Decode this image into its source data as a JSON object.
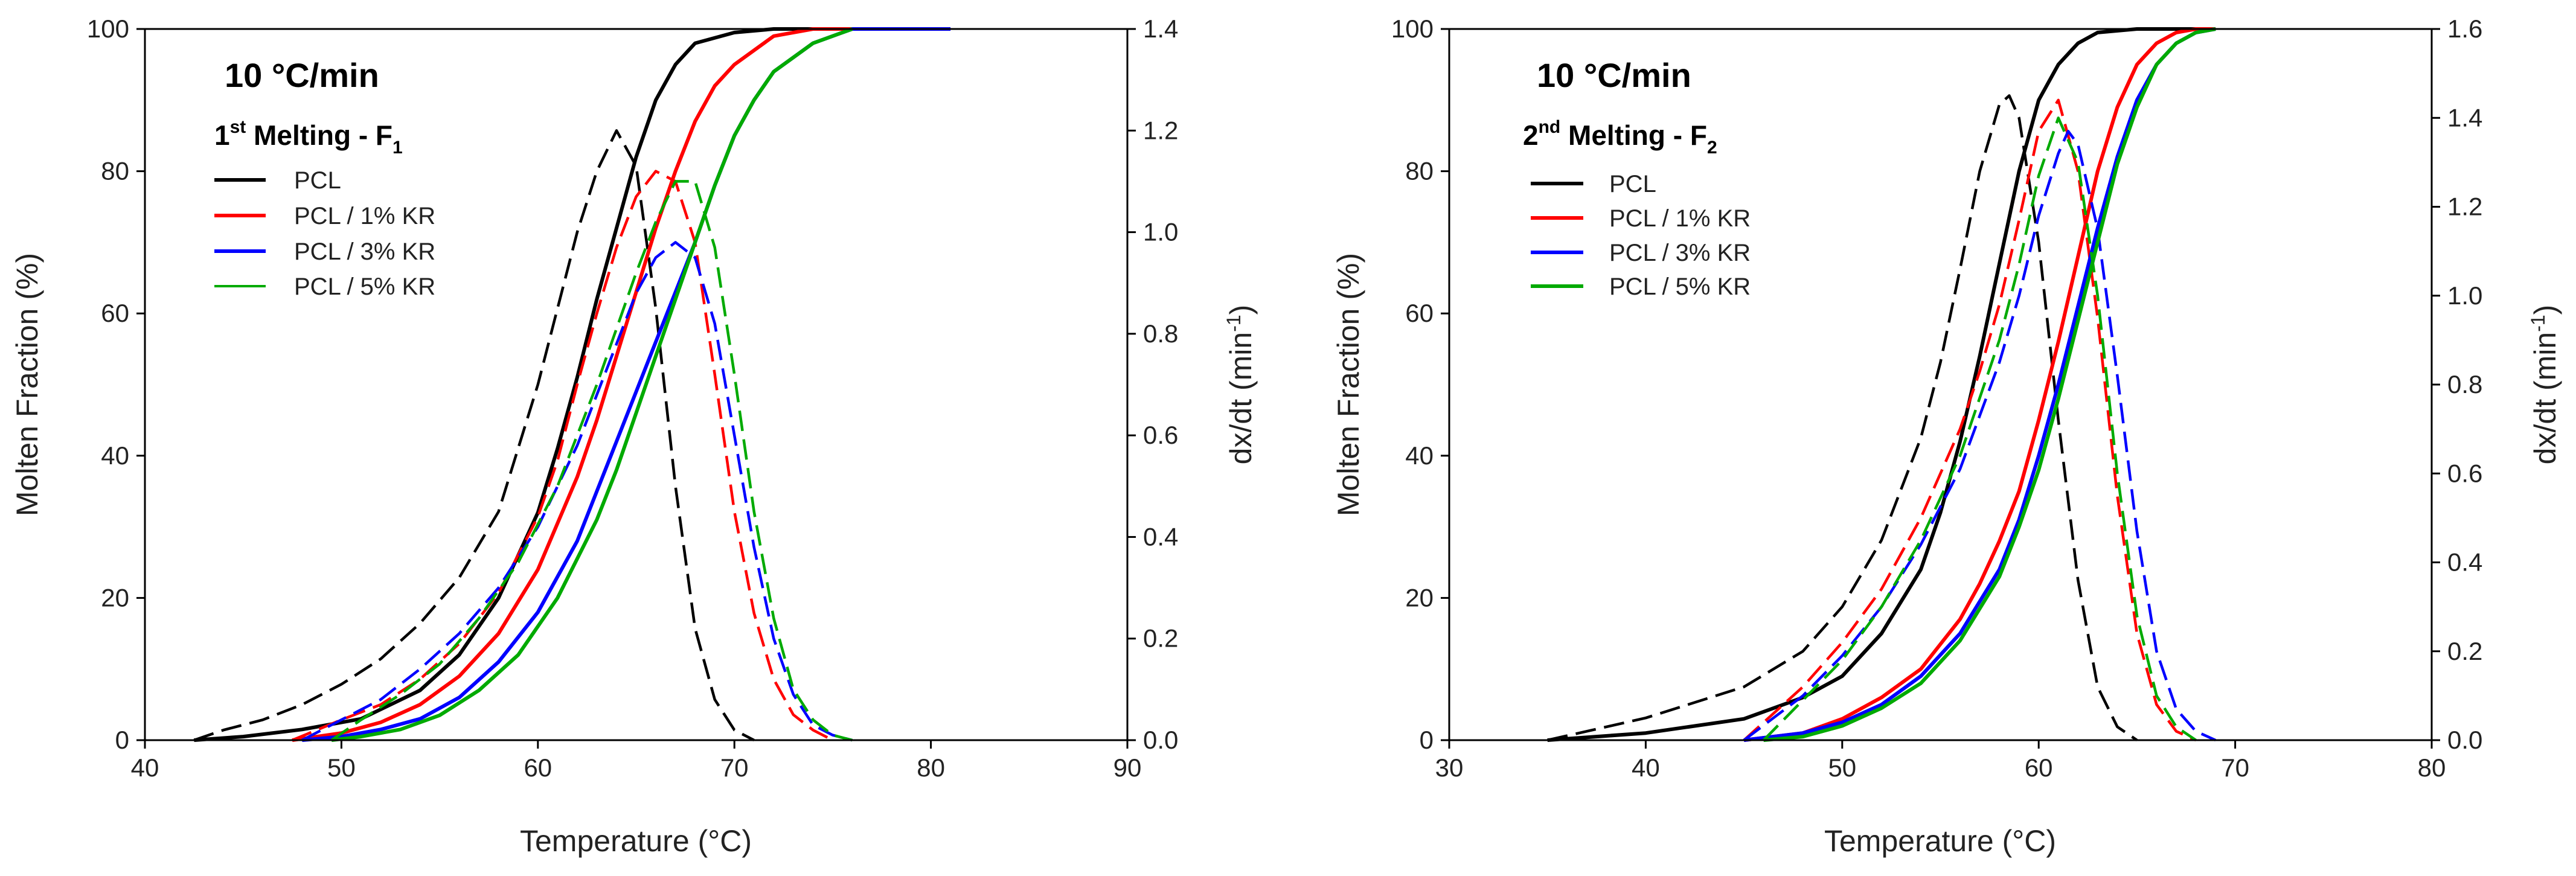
{
  "colors": {
    "PCL": "#000000",
    "PCL / 1% KR": "#ff0000",
    "PCL / 3% KR": "#0000ff",
    "PCL / 5% KR": "#00aa00"
  },
  "chart_data": [
    {
      "type": "line",
      "title": "10 °C/min",
      "subtitle_main": "1",
      "subtitle_sup": "st",
      "subtitle_rest": " Melting - F",
      "subtitle_sub": "1",
      "xlabel": "Temperature (°C)",
      "ylabel": "Molten Fraction (%)",
      "y2label_main": "dx/dt (min",
      "y2label_sup": "-1",
      "y2label_end": ")",
      "xlim": [
        40,
        90
      ],
      "ylim": [
        0,
        100
      ],
      "y2lim": [
        0,
        1.4
      ],
      "xticks": [
        40,
        50,
        60,
        70,
        80,
        90
      ],
      "yticks": [
        0,
        20,
        40,
        60,
        80,
        100
      ],
      "y2ticks": [
        "0.0",
        "0.2",
        "0.4",
        "0.6",
        "0.8",
        "1.0",
        "1.2",
        "1.4"
      ],
      "legend": [
        "PCL",
        "PCL / 1% KR",
        "PCL / 3% KR",
        "PCL / 5% KR"
      ],
      "series": [
        {
          "name": "PCL",
          "style": "solid",
          "axis": "y",
          "x": [
            42.5,
            45,
            48,
            51,
            54,
            56,
            58,
            60,
            61,
            62,
            63,
            64,
            65,
            66,
            67,
            68,
            70,
            72,
            74
          ],
          "y": [
            0,
            0.5,
            1.5,
            3,
            7,
            12,
            20,
            32,
            41,
            51,
            62,
            72,
            82,
            90,
            95,
            98,
            99.5,
            100,
            100
          ]
        },
        {
          "name": "PCL",
          "style": "dashed",
          "axis": "y2",
          "x": [
            42.5,
            44,
            46,
            48,
            50,
            52,
            54,
            56,
            58,
            60,
            61,
            62,
            63,
            64,
            65,
            66,
            67,
            68,
            69,
            70,
            71
          ],
          "y": [
            0,
            0.02,
            0.04,
            0.07,
            0.11,
            0.16,
            0.23,
            0.32,
            0.45,
            0.7,
            0.85,
            1.0,
            1.12,
            1.2,
            1.13,
            0.85,
            0.5,
            0.22,
            0.08,
            0.02,
            0
          ]
        },
        {
          "name": "PCL / 1% KR",
          "style": "solid",
          "axis": "y",
          "x": [
            47.5,
            50,
            52,
            54,
            56,
            58,
            60,
            62,
            63,
            64,
            65,
            66,
            67,
            68,
            69,
            70,
            72,
            74,
            76
          ],
          "y": [
            0,
            1,
            2.5,
            5,
            9,
            15,
            24,
            37,
            45,
            54,
            63,
            72,
            80,
            87,
            92,
            95,
            99,
            100,
            100
          ]
        },
        {
          "name": "PCL / 1% KR",
          "style": "dashed",
          "axis": "y2",
          "x": [
            47.5,
            50,
            52,
            54,
            56,
            58,
            60,
            61,
            62,
            63,
            64,
            65,
            66,
            67,
            68,
            69,
            70,
            71,
            72,
            73,
            74,
            75
          ],
          "y": [
            0,
            0.04,
            0.07,
            0.12,
            0.19,
            0.29,
            0.44,
            0.55,
            0.7,
            0.84,
            0.97,
            1.07,
            1.12,
            1.1,
            0.98,
            0.72,
            0.45,
            0.25,
            0.12,
            0.05,
            0.02,
            0
          ]
        },
        {
          "name": "PCL / 3% KR",
          "style": "solid",
          "axis": "y",
          "x": [
            48,
            50,
            52,
            54,
            56,
            58,
            60,
            62,
            63,
            64,
            65,
            66,
            67,
            68,
            69,
            70,
            71,
            72,
            74,
            76,
            81
          ],
          "y": [
            0,
            0.5,
            1.5,
            3,
            6,
            11,
            18,
            28,
            35,
            42,
            49,
            56,
            63,
            70,
            78,
            85,
            90,
            94,
            98,
            100,
            100
          ]
        },
        {
          "name": "PCL / 3% KR",
          "style": "dashed",
          "axis": "y2",
          "x": [
            48,
            50,
            52,
            54,
            56,
            58,
            60,
            62,
            63,
            64,
            65,
            66,
            67,
            68,
            69,
            70,
            71,
            72,
            73,
            74,
            75,
            76
          ],
          "y": [
            0,
            0.04,
            0.08,
            0.14,
            0.21,
            0.3,
            0.42,
            0.58,
            0.68,
            0.78,
            0.88,
            0.95,
            0.98,
            0.95,
            0.82,
            0.6,
            0.38,
            0.2,
            0.09,
            0.03,
            0.01,
            0
          ]
        },
        {
          "name": "PCL / 5% KR",
          "style": "solid",
          "axis": "y",
          "x": [
            49.5,
            51,
            53,
            55,
            57,
            59,
            61,
            63,
            64,
            65,
            66,
            67,
            68,
            69,
            70,
            71,
            72,
            74,
            76
          ],
          "y": [
            0,
            0.5,
            1.5,
            3.5,
            7,
            12,
            20,
            31,
            38,
            46,
            54,
            62,
            70,
            78,
            85,
            90,
            94,
            98,
            100
          ]
        },
        {
          "name": "PCL / 5% KR",
          "style": "dashed",
          "axis": "y2",
          "x": [
            49.5,
            51,
            53,
            55,
            57,
            59,
            61,
            62,
            63,
            64,
            65,
            66,
            67,
            68,
            69,
            70,
            71,
            72,
            73,
            74,
            75,
            76
          ],
          "y": [
            0,
            0.04,
            0.09,
            0.15,
            0.24,
            0.35,
            0.5,
            0.6,
            0.7,
            0.81,
            0.92,
            1.02,
            1.1,
            1.1,
            0.97,
            0.72,
            0.45,
            0.24,
            0.1,
            0.04,
            0.01,
            0
          ]
        }
      ]
    },
    {
      "type": "line",
      "title": "10 °C/min",
      "subtitle_main": "2",
      "subtitle_sup": "nd",
      "subtitle_rest": " Melting - F",
      "subtitle_sub": "2",
      "xlabel": "Temperature (°C)",
      "ylabel": "Molten Fraction (%)",
      "y2label_main": "dx/dt (min",
      "y2label_sup": "-1",
      "y2label_end": ")",
      "xlim": [
        30,
        80
      ],
      "ylim": [
        0,
        100
      ],
      "y2lim": [
        0,
        1.6
      ],
      "xticks": [
        30,
        40,
        50,
        60,
        70,
        80
      ],
      "yticks": [
        0,
        20,
        40,
        60,
        80,
        100
      ],
      "y2ticks": [
        "0.0",
        "0.2",
        "0.4",
        "0.6",
        "0.8",
        "1.0",
        "1.2",
        "1.4",
        "1.6"
      ],
      "legend": [
        "PCL",
        "PCL / 1% KR",
        "PCL / 3% KR",
        "PCL / 5% KR"
      ],
      "series": [
        {
          "name": "PCL",
          "style": "solid",
          "axis": "y",
          "x": [
            35,
            40,
            45,
            48,
            50,
            52,
            54,
            55,
            56,
            57,
            58,
            59,
            60,
            61,
            62,
            63,
            65,
            67,
            69
          ],
          "y": [
            0,
            1,
            3,
            6,
            9,
            15,
            24,
            32,
            42,
            54,
            67,
            80,
            90,
            95,
            98,
            99.5,
            100,
            100,
            100
          ]
        },
        {
          "name": "PCL",
          "style": "dashed",
          "axis": "y2",
          "x": [
            35,
            40,
            45,
            48,
            50,
            52,
            54,
            55,
            56,
            57,
            58,
            58.5,
            59,
            60,
            61,
            62,
            63,
            64,
            65
          ],
          "y": [
            0,
            0.05,
            0.12,
            0.2,
            0.3,
            0.45,
            0.68,
            0.85,
            1.06,
            1.28,
            1.43,
            1.45,
            1.4,
            1.12,
            0.72,
            0.36,
            0.12,
            0.03,
            0
          ]
        },
        {
          "name": "PCL / 1% KR",
          "style": "solid",
          "axis": "y",
          "x": [
            45,
            48,
            50,
            52,
            54,
            56,
            57,
            58,
            59,
            60,
            61,
            62,
            63,
            64,
            65,
            66,
            67,
            68,
            69
          ],
          "y": [
            0,
            1,
            3,
            6,
            10,
            17,
            22,
            28,
            35,
            45,
            56,
            68,
            80,
            89,
            95,
            98,
            99.5,
            100,
            100
          ]
        },
        {
          "name": "PCL / 1% KR",
          "style": "dashed",
          "axis": "y2",
          "x": [
            45,
            48,
            50,
            52,
            54,
            56,
            57,
            58,
            59,
            60,
            61,
            62,
            63,
            64,
            65,
            66,
            67,
            68
          ],
          "y": [
            0,
            0.12,
            0.22,
            0.34,
            0.5,
            0.7,
            0.83,
            0.98,
            1.17,
            1.37,
            1.44,
            1.28,
            0.95,
            0.55,
            0.24,
            0.08,
            0.02,
            0
          ]
        },
        {
          "name": "PCL / 3% KR",
          "style": "solid",
          "axis": "y",
          "x": [
            45,
            48,
            50,
            52,
            54,
            56,
            58,
            59,
            60,
            61,
            62,
            63,
            64,
            65,
            66,
            67,
            68,
            69
          ],
          "y": [
            0,
            1,
            2.5,
            5,
            9,
            15,
            24,
            31,
            40,
            50,
            61,
            72,
            82,
            90,
            95,
            98,
            99.5,
            100
          ]
        },
        {
          "name": "PCL / 3% KR",
          "style": "dashed",
          "axis": "y2",
          "x": [
            45,
            48,
            50,
            52,
            54,
            56,
            58,
            59,
            60,
            61,
            61.5,
            62,
            63,
            64,
            65,
            66,
            67,
            68,
            69
          ],
          "y": [
            0,
            0.1,
            0.19,
            0.3,
            0.44,
            0.61,
            0.85,
            1.0,
            1.18,
            1.32,
            1.37,
            1.34,
            1.15,
            0.82,
            0.47,
            0.2,
            0.07,
            0.02,
            0
          ]
        },
        {
          "name": "PCL / 5% KR",
          "style": "solid",
          "axis": "y",
          "x": [
            46,
            48,
            50,
            52,
            54,
            56,
            58,
            59,
            60,
            61,
            62,
            63,
            64,
            65,
            66,
            67,
            68,
            69
          ],
          "y": [
            0,
            0.5,
            2,
            4.5,
            8,
            14,
            23,
            30,
            38,
            48,
            59,
            70,
            81,
            89,
            95,
            98,
            99.5,
            100
          ]
        },
        {
          "name": "PCL / 5% KR",
          "style": "dashed",
          "axis": "y2",
          "x": [
            46,
            48,
            50,
            52,
            54,
            56,
            58,
            59,
            60,
            61,
            62,
            63,
            64,
            65,
            66,
            67,
            68
          ],
          "y": [
            0,
            0.09,
            0.18,
            0.3,
            0.45,
            0.64,
            0.9,
            1.07,
            1.27,
            1.4,
            1.3,
            1.0,
            0.6,
            0.28,
            0.1,
            0.03,
            0
          ]
        }
      ]
    }
  ]
}
